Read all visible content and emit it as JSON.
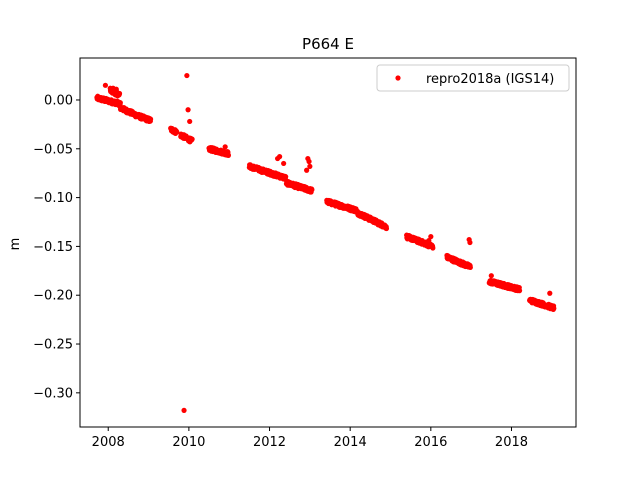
{
  "chart_data": {
    "type": "scatter",
    "title": "P664 E",
    "xlabel": "",
    "ylabel": "m",
    "xlim": [
      2007.3,
      2019.6
    ],
    "ylim": [
      -0.335,
      0.043
    ],
    "xticks": [
      2008,
      2010,
      2012,
      2014,
      2016,
      2018
    ],
    "xtick_labels": [
      "2008",
      "2010",
      "2012",
      "2014",
      "2016",
      "2018"
    ],
    "yticks": [
      0.0,
      -0.05,
      -0.1,
      -0.15,
      -0.2,
      -0.25,
      -0.3
    ],
    "ytick_labels": [
      "0.00",
      "−0.05",
      "−0.10",
      "−0.15",
      "−0.20",
      "−0.25",
      "−0.30"
    ],
    "grid": false,
    "legend_position": "top-right",
    "color": "#ff0000",
    "series": [
      {
        "name": "repro2018a (IGS14)",
        "color": "#ff0000",
        "marker": "circle",
        "segments": [
          {
            "x_start": 2007.72,
            "x_end": 2008.3,
            "y_start": 0.002,
            "y_end": -0.004
          },
          {
            "x_start": 2008.05,
            "x_end": 2008.28,
            "y_start": 0.01,
            "y_end": 0.005
          },
          {
            "x_start": 2008.3,
            "x_end": 2008.72,
            "y_start": -0.008,
            "y_end": -0.016
          },
          {
            "x_start": 2008.72,
            "x_end": 2009.05,
            "y_start": -0.016,
            "y_end": -0.021
          },
          {
            "x_start": 2009.55,
            "x_end": 2009.7,
            "y_start": -0.03,
            "y_end": -0.033
          },
          {
            "x_start": 2009.8,
            "x_end": 2010.08,
            "y_start": -0.036,
            "y_end": -0.042
          },
          {
            "x_start": 2010.5,
            "x_end": 2010.98,
            "y_start": -0.05,
            "y_end": -0.055
          },
          {
            "x_start": 2011.5,
            "x_end": 2012.4,
            "y_start": -0.068,
            "y_end": -0.08
          },
          {
            "x_start": 2012.42,
            "x_end": 2013.05,
            "y_start": -0.085,
            "y_end": -0.093
          },
          {
            "x_start": 2013.42,
            "x_end": 2014.15,
            "y_start": -0.104,
            "y_end": -0.113
          },
          {
            "x_start": 2014.15,
            "x_end": 2014.9,
            "y_start": -0.115,
            "y_end": -0.13
          },
          {
            "x_start": 2015.4,
            "x_end": 2016.05,
            "y_start": -0.14,
            "y_end": -0.15
          },
          {
            "x_start": 2016.4,
            "x_end": 2016.98,
            "y_start": -0.161,
            "y_end": -0.171
          },
          {
            "x_start": 2017.45,
            "x_end": 2018.2,
            "y_start": -0.186,
            "y_end": -0.194
          },
          {
            "x_start": 2018.45,
            "x_end": 2019.05,
            "y_start": -0.205,
            "y_end": -0.213
          }
        ],
        "points": [
          {
            "x": 2007.93,
            "y": 0.015
          },
          {
            "x": 2008.12,
            "y": 0.012
          },
          {
            "x": 2008.2,
            "y": 0.011
          },
          {
            "x": 2009.95,
            "y": 0.025
          },
          {
            "x": 2009.98,
            "y": -0.01
          },
          {
            "x": 2010.02,
            "y": -0.022
          },
          {
            "x": 2009.88,
            "y": -0.318
          },
          {
            "x": 2012.2,
            "y": -0.06
          },
          {
            "x": 2012.25,
            "y": -0.058
          },
          {
            "x": 2012.35,
            "y": -0.065
          },
          {
            "x": 2012.95,
            "y": -0.06
          },
          {
            "x": 2012.98,
            "y": -0.063
          },
          {
            "x": 2013.0,
            "y": -0.068
          },
          {
            "x": 2012.92,
            "y": -0.072
          },
          {
            "x": 2016.0,
            "y": -0.14
          },
          {
            "x": 2016.95,
            "y": -0.143
          },
          {
            "x": 2016.97,
            "y": -0.146
          },
          {
            "x": 2017.5,
            "y": -0.18
          },
          {
            "x": 2018.95,
            "y": -0.198
          },
          {
            "x": 2010.9,
            "y": -0.048
          },
          {
            "x": 2015.95,
            "y": -0.144
          }
        ]
      }
    ]
  }
}
